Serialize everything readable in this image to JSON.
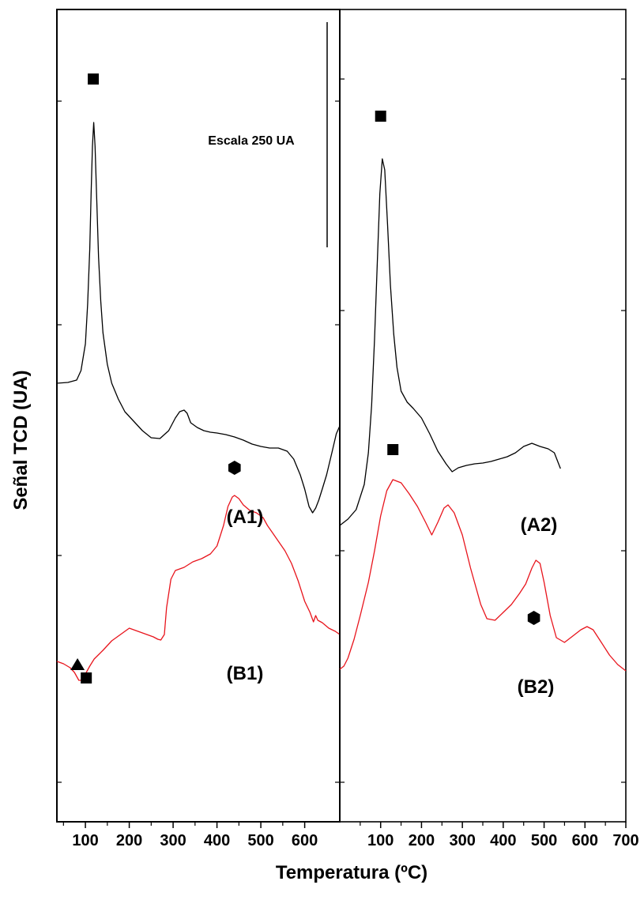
{
  "chart_data": {
    "type": "line",
    "xlabel": "Temperatura  (ºC)",
    "ylabel": "Señal TCD (UA)",
    "scale_bar_label": "Escala 250 UA",
    "colors": {
      "A": "#000000",
      "B": "#e8141c"
    },
    "panels": [
      {
        "xlim": [
          35,
          680
        ],
        "xticks": [
          "100",
          "200",
          "300",
          "400",
          "500",
          "600"
        ],
        "xtick_values": [
          100,
          200,
          300,
          400,
          500,
          600
        ],
        "series": [
          {
            "name": "(A1)",
            "color": "#000000",
            "x": [
              35,
              60,
              80,
              90,
              100,
              105,
              110,
              113,
              116,
              119,
              122,
              126,
              130,
              135,
              140,
              150,
              160,
              175,
              190,
              210,
              230,
              250,
              270,
              290,
              305,
              315,
              325,
              332,
              340,
              355,
              370,
              385,
              400,
              420,
              440,
              460,
              480,
              500,
              520,
              540,
              560,
              575,
              590,
              600,
              610,
              618,
              625,
              632,
              640,
              650,
              662,
              672,
              680
            ],
            "y": [
              1000,
              1005,
              1020,
              1080,
              1250,
              1500,
              1850,
              2200,
              2500,
              2650,
              2500,
              2150,
              1800,
              1520,
              1320,
              1120,
              1000,
              900,
              820,
              760,
              700,
              655,
              650,
              700,
              780,
              820,
              830,
              810,
              750,
              720,
              700,
              690,
              685,
              675,
              660,
              640,
              615,
              600,
              590,
              590,
              570,
              520,
              420,
              330,
              220,
              180,
              210,
              260,
              330,
              420,
              560,
              680,
              730
            ]
          },
          {
            "name": "(B1)",
            "color": "#e8141c",
            "x": [
              35,
              50,
              65,
              75,
              85,
              95,
              100,
              110,
              120,
              140,
              160,
              180,
              200,
              220,
              240,
              255,
              265,
              272,
              280,
              285,
              295,
              305,
              325,
              345,
              365,
              385,
              400,
              415,
              425,
              435,
              440,
              450,
              460,
              475,
              490,
              505,
              515,
              525,
              540,
              555,
              570,
              585,
              600,
              612,
              620,
              625,
              630,
              640,
              655,
              670,
              680
            ],
            "y": [
              -760,
              -775,
              -800,
              -830,
              -880,
              -880,
              -840,
              -790,
              -745,
              -690,
              -630,
              -590,
              -550,
              -570,
              -590,
              -605,
              -620,
              -625,
              -590,
              -420,
              -240,
              -185,
              -165,
              -130,
              -110,
              -80,
              -30,
              100,
              220,
              280,
              290,
              270,
              230,
              195,
              180,
              150,
              100,
              60,
              0,
              -60,
              -140,
              -250,
              -380,
              -450,
              -510,
              -470,
              -500,
              -515,
              -550,
              -570,
              -590
            ]
          }
        ],
        "labels": [
          {
            "text": "(A1)",
            "series": "(A1)"
          },
          {
            "text": "(B1)",
            "series": "(B1)"
          }
        ],
        "markers": [
          {
            "shape": "square",
            "x": 118,
            "y": 2925
          },
          {
            "shape": "hexagon",
            "x": 440,
            "y": 465
          },
          {
            "shape": "triangle",
            "x": 82,
            "y": -780
          },
          {
            "shape": "square",
            "x": 102,
            "y": -865
          }
        ]
      },
      {
        "xlim": [
          0,
          700
        ],
        "xticks": [
          "100",
          "200",
          "300",
          "400",
          "500",
          "600",
          "700"
        ],
        "xtick_values": [
          100,
          200,
          300,
          400,
          500,
          600,
          700
        ],
        "series": [
          {
            "name": "(A2)",
            "color": "#000000",
            "x": [
              0,
              20,
              40,
              60,
              70,
              78,
              85,
              92,
              98,
              104,
              110,
              117,
              124,
              132,
              140,
              150,
              165,
              180,
              200,
              220,
              240,
              260,
              275,
              290,
              310,
              330,
              350,
              370,
              390,
              410,
              430,
              450,
              470,
              490,
              510,
              525,
              540
            ],
            "y": [
              100,
              140,
              200,
              360,
              560,
              860,
              1280,
              1780,
              2200,
              2420,
              2350,
              2000,
              1620,
              1310,
              1100,
              950,
              880,
              840,
              780,
              680,
              570,
              490,
              440,
              465,
              480,
              490,
              495,
              505,
              520,
              535,
              560,
              600,
              620,
              600,
              585,
              560,
              460
            ]
          },
          {
            "name": "(B2)",
            "color": "#e8141c",
            "x": [
              0,
              10,
              20,
              35,
              50,
              70,
              85,
              100,
              115,
              130,
              150,
              170,
              190,
              210,
              225,
              240,
              255,
              265,
              280,
              300,
              320,
              345,
              360,
              380,
              400,
              420,
              440,
              455,
              470,
              480,
              490,
              500,
              515,
              530,
              550,
              570,
              590,
              605,
              620,
              640,
              660,
              680,
              695,
              700
            ],
            "y": [
              -810,
              -790,
              -740,
              -620,
              -470,
              -260,
              -60,
              160,
              320,
              390,
              370,
              300,
              220,
              120,
              40,
              120,
              210,
              230,
              180,
              40,
              -170,
              -400,
              -490,
              -500,
              -450,
              -400,
              -330,
              -270,
              -170,
              -120,
              -140,
              -260,
              -470,
              -610,
              -640,
              -600,
              -560,
              -540,
              -560,
              -640,
              -720,
              -780,
              -810,
              -820
            ]
          }
        ],
        "labels": [
          {
            "text": "(A2)",
            "series": "(A2)"
          },
          {
            "text": "(B2)",
            "series": "(B2)"
          }
        ],
        "markers": [
          {
            "shape": "square",
            "x": 100,
            "y": 2690
          },
          {
            "shape": "square",
            "x": 130,
            "y": 580
          },
          {
            "shape": "hexagon",
            "x": 475,
            "y": -485
          }
        ]
      }
    ]
  }
}
